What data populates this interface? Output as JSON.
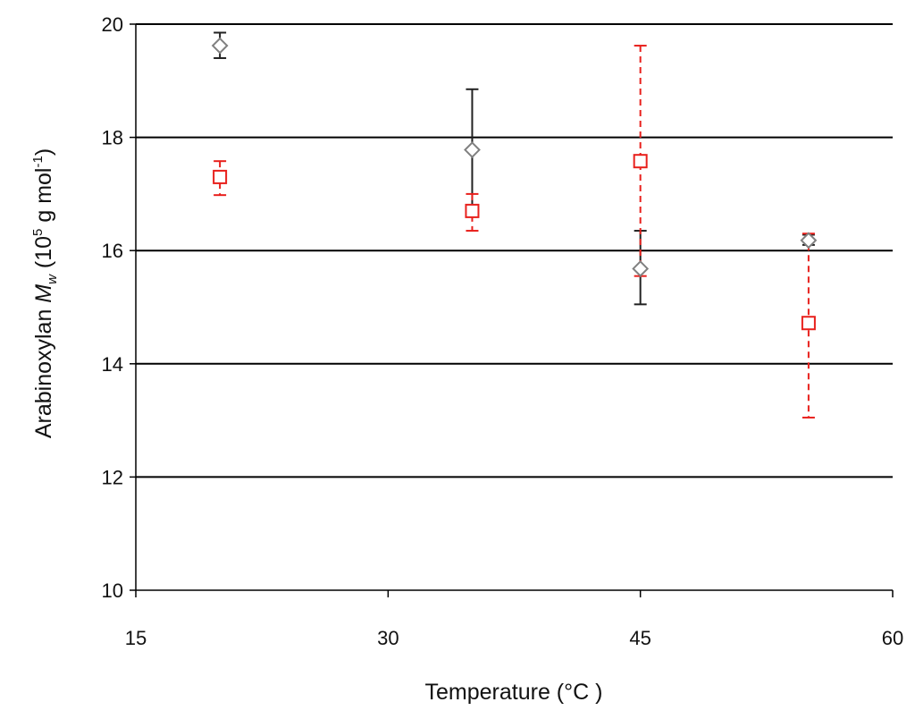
{
  "chart_data": {
    "type": "scatter",
    "xlabel": "Temperature (°C )",
    "ylabel": {
      "prefix": "Arabinoxylan ",
      "symbol": "M",
      "subscript": "w",
      "unit_open": " (10",
      "unit_exp": "5",
      "unit_mid": " g mol",
      "unit_exp2": "-1",
      "unit_close": ")"
    },
    "xlim": [
      15,
      60
    ],
    "ylim": [
      10,
      20
    ],
    "xticks": [
      "15",
      "30",
      "45",
      "60"
    ],
    "yticks": [
      "10",
      "12",
      "14",
      "16",
      "18",
      "20"
    ],
    "grid": "horizontal",
    "legend": "none",
    "series": [
      {
        "marker": "diamond",
        "color": "#808080",
        "error_color": "#222222",
        "error_style": "solid",
        "points": [
          {
            "x": 20,
            "y": 19.62,
            "low": 19.4,
            "high": 19.85
          },
          {
            "x": 35,
            "y": 17.78,
            "low": 16.72,
            "high": 18.85
          },
          {
            "x": 45,
            "y": 15.68,
            "low": 15.05,
            "high": 16.35
          },
          {
            "x": 55,
            "y": 16.18,
            "low": 16.1,
            "high": 16.28
          }
        ]
      },
      {
        "marker": "square",
        "color": "#e8201c",
        "error_color": "#e8201c",
        "error_style": "dashed",
        "points": [
          {
            "x": 20,
            "y": 17.3,
            "low": 16.98,
            "high": 17.58
          },
          {
            "x": 35,
            "y": 16.7,
            "low": 16.35,
            "high": 17.0
          },
          {
            "x": 45,
            "y": 17.58,
            "low": 15.55,
            "high": 19.62
          },
          {
            "x": 55,
            "y": 14.72,
            "low": 13.05,
            "high": 16.3
          }
        ]
      }
    ]
  }
}
